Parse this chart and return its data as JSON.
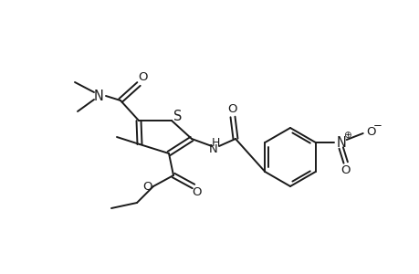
{
  "bg_color": "#ffffff",
  "line_color": "#1a1a1a",
  "lw": 1.4,
  "fs": 9.5,
  "fig_width": 4.6,
  "fig_height": 3.0,
  "dpi": 100,
  "xlim": [
    0,
    460
  ],
  "ylim": [
    0,
    300
  ]
}
